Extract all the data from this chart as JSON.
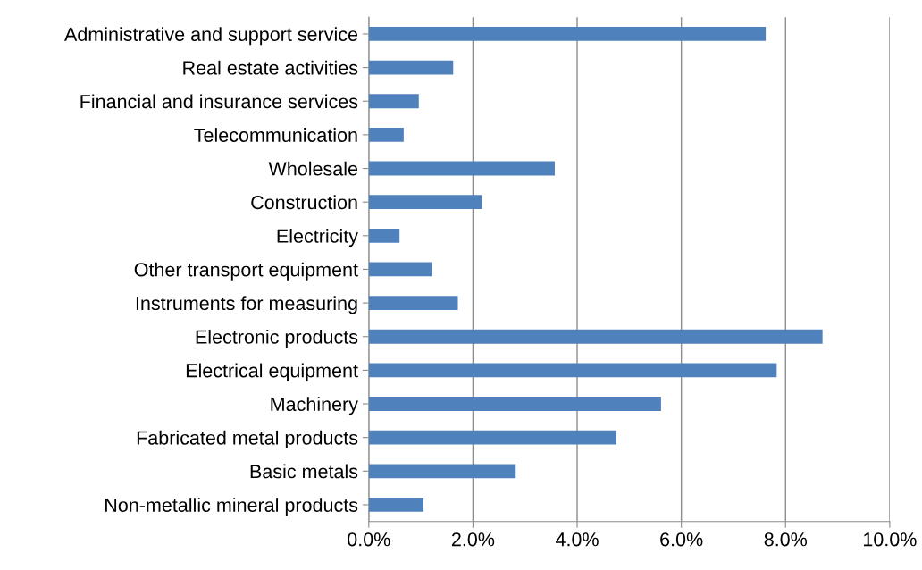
{
  "chart_data": {
    "type": "bar",
    "orientation": "horizontal",
    "categories": [
      "Administrative and support service",
      "Real estate activities",
      "Financial and insurance services",
      "Telecommunication",
      "Wholesale",
      "Construction",
      "Electricity",
      "Other transport equipment",
      "Instruments for measuring",
      "Electronic products",
      "Electrical equipment",
      "Machinery",
      "Fabricated metal products",
      "Basic metals",
      "Non-metallic mineral products"
    ],
    "values": [
      7.62,
      1.62,
      0.96,
      0.67,
      3.57,
      2.17,
      0.59,
      1.21,
      1.71,
      8.71,
      7.83,
      5.61,
      4.75,
      2.82,
      1.05
    ],
    "color": "#4f81bd",
    "xlim": [
      0,
      10
    ],
    "xticks": [
      {
        "value": 0,
        "label": "0.0%"
      },
      {
        "value": 2,
        "label": "2.0%"
      },
      {
        "value": 4,
        "label": "4.0%"
      },
      {
        "value": 6,
        "label": "6.0%"
      },
      {
        "value": 8,
        "label": "8.0%"
      },
      {
        "value": 10,
        "label": "10.0%"
      }
    ],
    "grid": "x",
    "legend": false
  }
}
